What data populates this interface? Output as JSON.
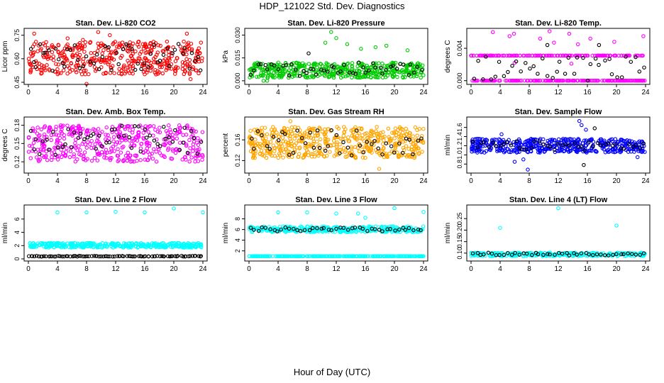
{
  "page": {
    "title": "HDP_121022  Std. Dev. Diagnostics",
    "xlabel": "Hour of Day (UTC)"
  },
  "x_axis": {
    "range": [
      0,
      24
    ],
    "ticks": [
      0,
      4,
      8,
      12,
      16,
      20,
      24
    ]
  },
  "colors": {
    "red": "#ff0000",
    "green": "#00cc00",
    "magenta": "#ff00ff",
    "orange": "#ffa500",
    "blue": "#0000ff",
    "cyan": "#00ffff",
    "black": "#000000"
  },
  "chart_data": [
    {
      "id": "co2",
      "type": "scatter",
      "title": "Stan. Dev. Li-820 CO2",
      "ylabel": "Licor ppm",
      "ylim": [
        0.45,
        0.78
      ],
      "yticks": [
        "0.45",
        "0.60",
        "0.75"
      ],
      "color": "#ff0000",
      "series": [
        {
          "name": "all",
          "color": "#ff0000",
          "n": 420,
          "min": 0.5,
          "max": 0.71,
          "outliers": [
            {
              "x": 0.8,
              "y": 0.76
            },
            {
              "x": 5.4,
              "y": 0.73
            },
            {
              "x": 7.5,
              "y": 0.72
            },
            {
              "x": 8.0,
              "y": 0.44
            },
            {
              "x": 9.6,
              "y": 0.77
            },
            {
              "x": 11.2,
              "y": 0.75
            },
            {
              "x": 21.8,
              "y": 0.76
            },
            {
              "x": 22.3,
              "y": 0.47
            }
          ]
        },
        {
          "name": "hourly",
          "color": "#000000",
          "n": 55,
          "min": 0.52,
          "max": 0.7,
          "outliers": []
        }
      ]
    },
    {
      "id": "pressure",
      "type": "scatter",
      "title": "Stan. Dev. Li-820 Pressure",
      "ylabel": "kPa",
      "ylim": [
        -0.001,
        0.033
      ],
      "yticks": [
        "0.000",
        "0.015",
        "0.030"
      ],
      "color": "#00cc00",
      "series": [
        {
          "name": "all",
          "color": "#00cc00",
          "n": 450,
          "min": 0.002,
          "max": 0.012,
          "outliers": [
            {
              "x": 10.5,
              "y": 0.025
            },
            {
              "x": 11.3,
              "y": 0.032
            },
            {
              "x": 12.0,
              "y": 0.028
            },
            {
              "x": 13.5,
              "y": 0.024
            },
            {
              "x": 15.4,
              "y": 0.021
            },
            {
              "x": 17.4,
              "y": 0.022
            },
            {
              "x": 18.9,
              "y": 0.023
            },
            {
              "x": 21.8,
              "y": 0.02
            },
            {
              "x": 2.0,
              "y": 0.0
            },
            {
              "x": 2.5,
              "y": 0.0
            }
          ]
        },
        {
          "name": "hourly",
          "color": "#000000",
          "n": 50,
          "min": 0.003,
          "max": 0.012,
          "outliers": [
            {
              "x": 8.2,
              "y": 0.018
            }
          ]
        }
      ]
    },
    {
      "id": "temp",
      "type": "scatter",
      "title": "Stan. Dev. Li-820 Temp.",
      "ylabel": "degrees C",
      "ylim": [
        -0.0002,
        0.0062
      ],
      "yticks": [
        "0.000",
        "0.004"
      ],
      "color": "#ff00ff",
      "series": [
        {
          "name": "level_high",
          "color": "#ff00ff",
          "n": 150,
          "min": 0.0031,
          "max": 0.0031,
          "outliers": [
            {
              "x": 3.0,
              "y": 0.006
            },
            {
              "x": 5.3,
              "y": 0.0055
            },
            {
              "x": 5.9,
              "y": 0.0058
            },
            {
              "x": 9.5,
              "y": 0.0052
            },
            {
              "x": 10.8,
              "y": 0.0061
            },
            {
              "x": 11.4,
              "y": 0.0047
            },
            {
              "x": 13.5,
              "y": 0.0058
            },
            {
              "x": 14.7,
              "y": 0.0045
            },
            {
              "x": 16.4,
              "y": 0.0052
            },
            {
              "x": 19.7,
              "y": 0.0048
            },
            {
              "x": 23.7,
              "y": 0.0055
            },
            {
              "x": 6.0,
              "y": 0.0022
            },
            {
              "x": 13.8,
              "y": 0.0021
            }
          ]
        },
        {
          "name": "level_zero",
          "color": "#ff00ff",
          "n": 200,
          "min": 0.0,
          "max": 0.0,
          "outliers": []
        },
        {
          "name": "hourly",
          "color": "#000000",
          "n": 40,
          "min": 0.0,
          "max": 0.0031,
          "outliers": [
            {
              "x": 10.5,
              "y": 0.0044
            },
            {
              "x": 17.6,
              "y": 0.0044
            }
          ]
        }
      ]
    },
    {
      "id": "boxtemp",
      "type": "scatter",
      "title": "Stan. Dev. Amb. Box Temp.",
      "ylabel": "degrees C",
      "ylim": [
        0.105,
        0.19
      ],
      "yticks": [
        "0.12",
        "0.15",
        "0.18"
      ],
      "color": "#ff00ff",
      "series": [
        {
          "name": "all",
          "color": "#ff00ff",
          "n": 430,
          "min": 0.12,
          "max": 0.18,
          "outliers": []
        },
        {
          "name": "hourly",
          "color": "#000000",
          "n": 55,
          "min": 0.13,
          "max": 0.18,
          "outliers": []
        }
      ]
    },
    {
      "id": "rh",
      "type": "scatter",
      "title": "Stan. Dev. Gas Stream RH",
      "ylabel": "percent",
      "ylim": [
        0.1,
        0.2
      ],
      "yticks": [
        "0.12",
        "0.16"
      ],
      "color": "#ffa500",
      "series": [
        {
          "name": "all",
          "color": "#ffa500",
          "n": 520,
          "min": 0.125,
          "max": 0.185,
          "outliers": [
            {
              "x": 5.7,
              "y": 0.196
            },
            {
              "x": 17.9,
              "y": 0.104
            }
          ]
        },
        {
          "name": "hourly",
          "color": "#000000",
          "n": 45,
          "min": 0.13,
          "max": 0.18,
          "outliers": []
        }
      ]
    },
    {
      "id": "sample",
      "type": "scatter",
      "title": "Stan. Dev. Sample Flow",
      "ylabel": "ml/min",
      "ylim": [
        0.65,
        1.78
      ],
      "yticks": [
        "0.8",
        "1.0",
        "1.2",
        "1.4",
        "1.6"
      ],
      "color": "#0000ff",
      "series": [
        {
          "name": "all",
          "color": "#0000ff",
          "n": 450,
          "min": 1.05,
          "max": 1.35,
          "outliers": [
            {
              "x": 6.0,
              "y": 0.85
            },
            {
              "x": 7.8,
              "y": 0.68
            },
            {
              "x": 7.2,
              "y": 0.9
            },
            {
              "x": 14.9,
              "y": 1.74
            },
            {
              "x": 15.2,
              "y": 1.65
            },
            {
              "x": 15.8,
              "y": 1.55
            },
            {
              "x": 22.9,
              "y": 0.95
            },
            {
              "x": 4.2,
              "y": 1.45
            }
          ]
        },
        {
          "name": "hourly",
          "color": "#000000",
          "n": 45,
          "min": 1.1,
          "max": 1.3,
          "outliers": [
            {
              "x": 15.5,
              "y": 0.78
            },
            {
              "x": 17.0,
              "y": 1.58
            }
          ]
        }
      ]
    },
    {
      "id": "line2",
      "type": "scatter",
      "title": "Stan. Dev. Line 2 Flow",
      "ylabel": "ml/min",
      "ylim": [
        0,
        7.8
      ],
      "yticks": [
        "0",
        "2",
        "4",
        "6"
      ],
      "color": "#00ffff",
      "series": [
        {
          "name": "band",
          "color": "#00ffff",
          "n": 360,
          "min": 1.7,
          "max": 2.4,
          "outliers": [
            {
              "x": 4.0,
              "y": 7.0
            },
            {
              "x": 8.0,
              "y": 7.0
            },
            {
              "x": 12.0,
              "y": 7.1
            },
            {
              "x": 16.0,
              "y": 7.0
            },
            {
              "x": 20.0,
              "y": 7.6
            },
            {
              "x": 24.0,
              "y": 7.0
            }
          ]
        },
        {
          "name": "hourly",
          "color": "#000000",
          "n": 90,
          "min": 0.35,
          "max": 0.45,
          "outliers": []
        }
      ]
    },
    {
      "id": "line3",
      "type": "scatter",
      "title": "Stan. Dev. Line 3 Flow",
      "ylabel": "ml/min",
      "ylim": [
        0.5,
        10.2
      ],
      "yticks": [
        "2",
        "4",
        "6",
        "8"
      ],
      "color": "#00ffff",
      "series": [
        {
          "name": "band",
          "color": "#00ffff",
          "n": 360,
          "min": 5.5,
          "max": 6.6,
          "outliers": [
            {
              "x": 4.0,
              "y": 9.2
            },
            {
              "x": 8.0,
              "y": 9.2
            },
            {
              "x": 12.0,
              "y": 9.0
            },
            {
              "x": 15.0,
              "y": 9.0
            },
            {
              "x": 16.0,
              "y": 8.2
            },
            {
              "x": 20.0,
              "y": 10.0
            },
            {
              "x": 24.0,
              "y": 9.3
            }
          ]
        },
        {
          "name": "base",
          "color": "#00ffff",
          "n": 250,
          "min": 1.0,
          "max": 1.0,
          "outliers": []
        },
        {
          "name": "hourly",
          "color": "#000000",
          "n": 45,
          "min": 5.6,
          "max": 6.4,
          "outliers": []
        }
      ]
    },
    {
      "id": "line4",
      "type": "scatter",
      "title": "Stan. Dev. Line 4 (LT) Flow",
      "ylabel": "ml/min",
      "ylim": [
        0.075,
        0.3
      ],
      "yticks": [
        "0.10",
        "0.15",
        "0.20",
        "0.25"
      ],
      "color": "#00ffff",
      "series": [
        {
          "name": "band",
          "color": "#00ffff",
          "n": 300,
          "min": 0.087,
          "max": 0.102,
          "outliers": [
            {
              "x": 4.0,
              "y": 0.21
            },
            {
              "x": 12.0,
              "y": 0.295
            },
            {
              "x": 20.0,
              "y": 0.22
            }
          ]
        },
        {
          "name": "hourly",
          "color": "#000000",
          "n": 45,
          "min": 0.09,
          "max": 0.102,
          "outliers": []
        }
      ]
    }
  ]
}
